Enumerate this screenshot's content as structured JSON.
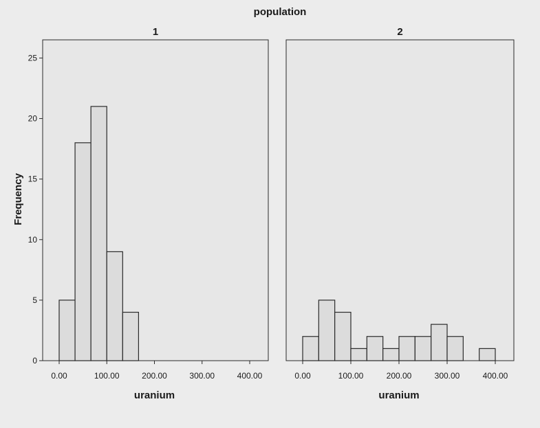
{
  "chart_data": {
    "type": "bar",
    "title": "population",
    "ylabel": "Frequency",
    "ylim": [
      0,
      25
    ],
    "yticks": [
      "0",
      "5",
      "10",
      "15",
      "20",
      "25"
    ],
    "grid": false,
    "panels": [
      {
        "label": "1",
        "xlabel": "uranium",
        "xlim": [
          0,
          400
        ],
        "xticks": [
          "0.00",
          "100.00",
          "200.00",
          "300.00",
          "400.00"
        ],
        "bin_width": 33.33,
        "bins": [
          {
            "start": 0,
            "end": 33.33,
            "count": 5
          },
          {
            "start": 33.33,
            "end": 66.67,
            "count": 18
          },
          {
            "start": 66.67,
            "end": 100,
            "count": 21
          },
          {
            "start": 100,
            "end": 133.33,
            "count": 9
          },
          {
            "start": 133.33,
            "end": 166.67,
            "count": 4
          }
        ]
      },
      {
        "label": "2",
        "xlabel": "uranium",
        "xlim": [
          0,
          400
        ],
        "xticks": [
          "0.00",
          "100.00",
          "200.00",
          "300.00",
          "400.00"
        ],
        "bin_width": 33.33,
        "bins": [
          {
            "start": 0,
            "end": 33.33,
            "count": 2
          },
          {
            "start": 33.33,
            "end": 66.67,
            "count": 5
          },
          {
            "start": 66.67,
            "end": 100,
            "count": 4
          },
          {
            "start": 100,
            "end": 133.33,
            "count": 1
          },
          {
            "start": 133.33,
            "end": 166.67,
            "count": 2
          },
          {
            "start": 166.67,
            "end": 200,
            "count": 1
          },
          {
            "start": 200,
            "end": 233.33,
            "count": 2
          },
          {
            "start": 233.33,
            "end": 266.67,
            "count": 2
          },
          {
            "start": 266.67,
            "end": 300,
            "count": 3
          },
          {
            "start": 300,
            "end": 333.33,
            "count": 2
          },
          {
            "start": 366.67,
            "end": 400,
            "count": 1
          }
        ]
      }
    ]
  }
}
